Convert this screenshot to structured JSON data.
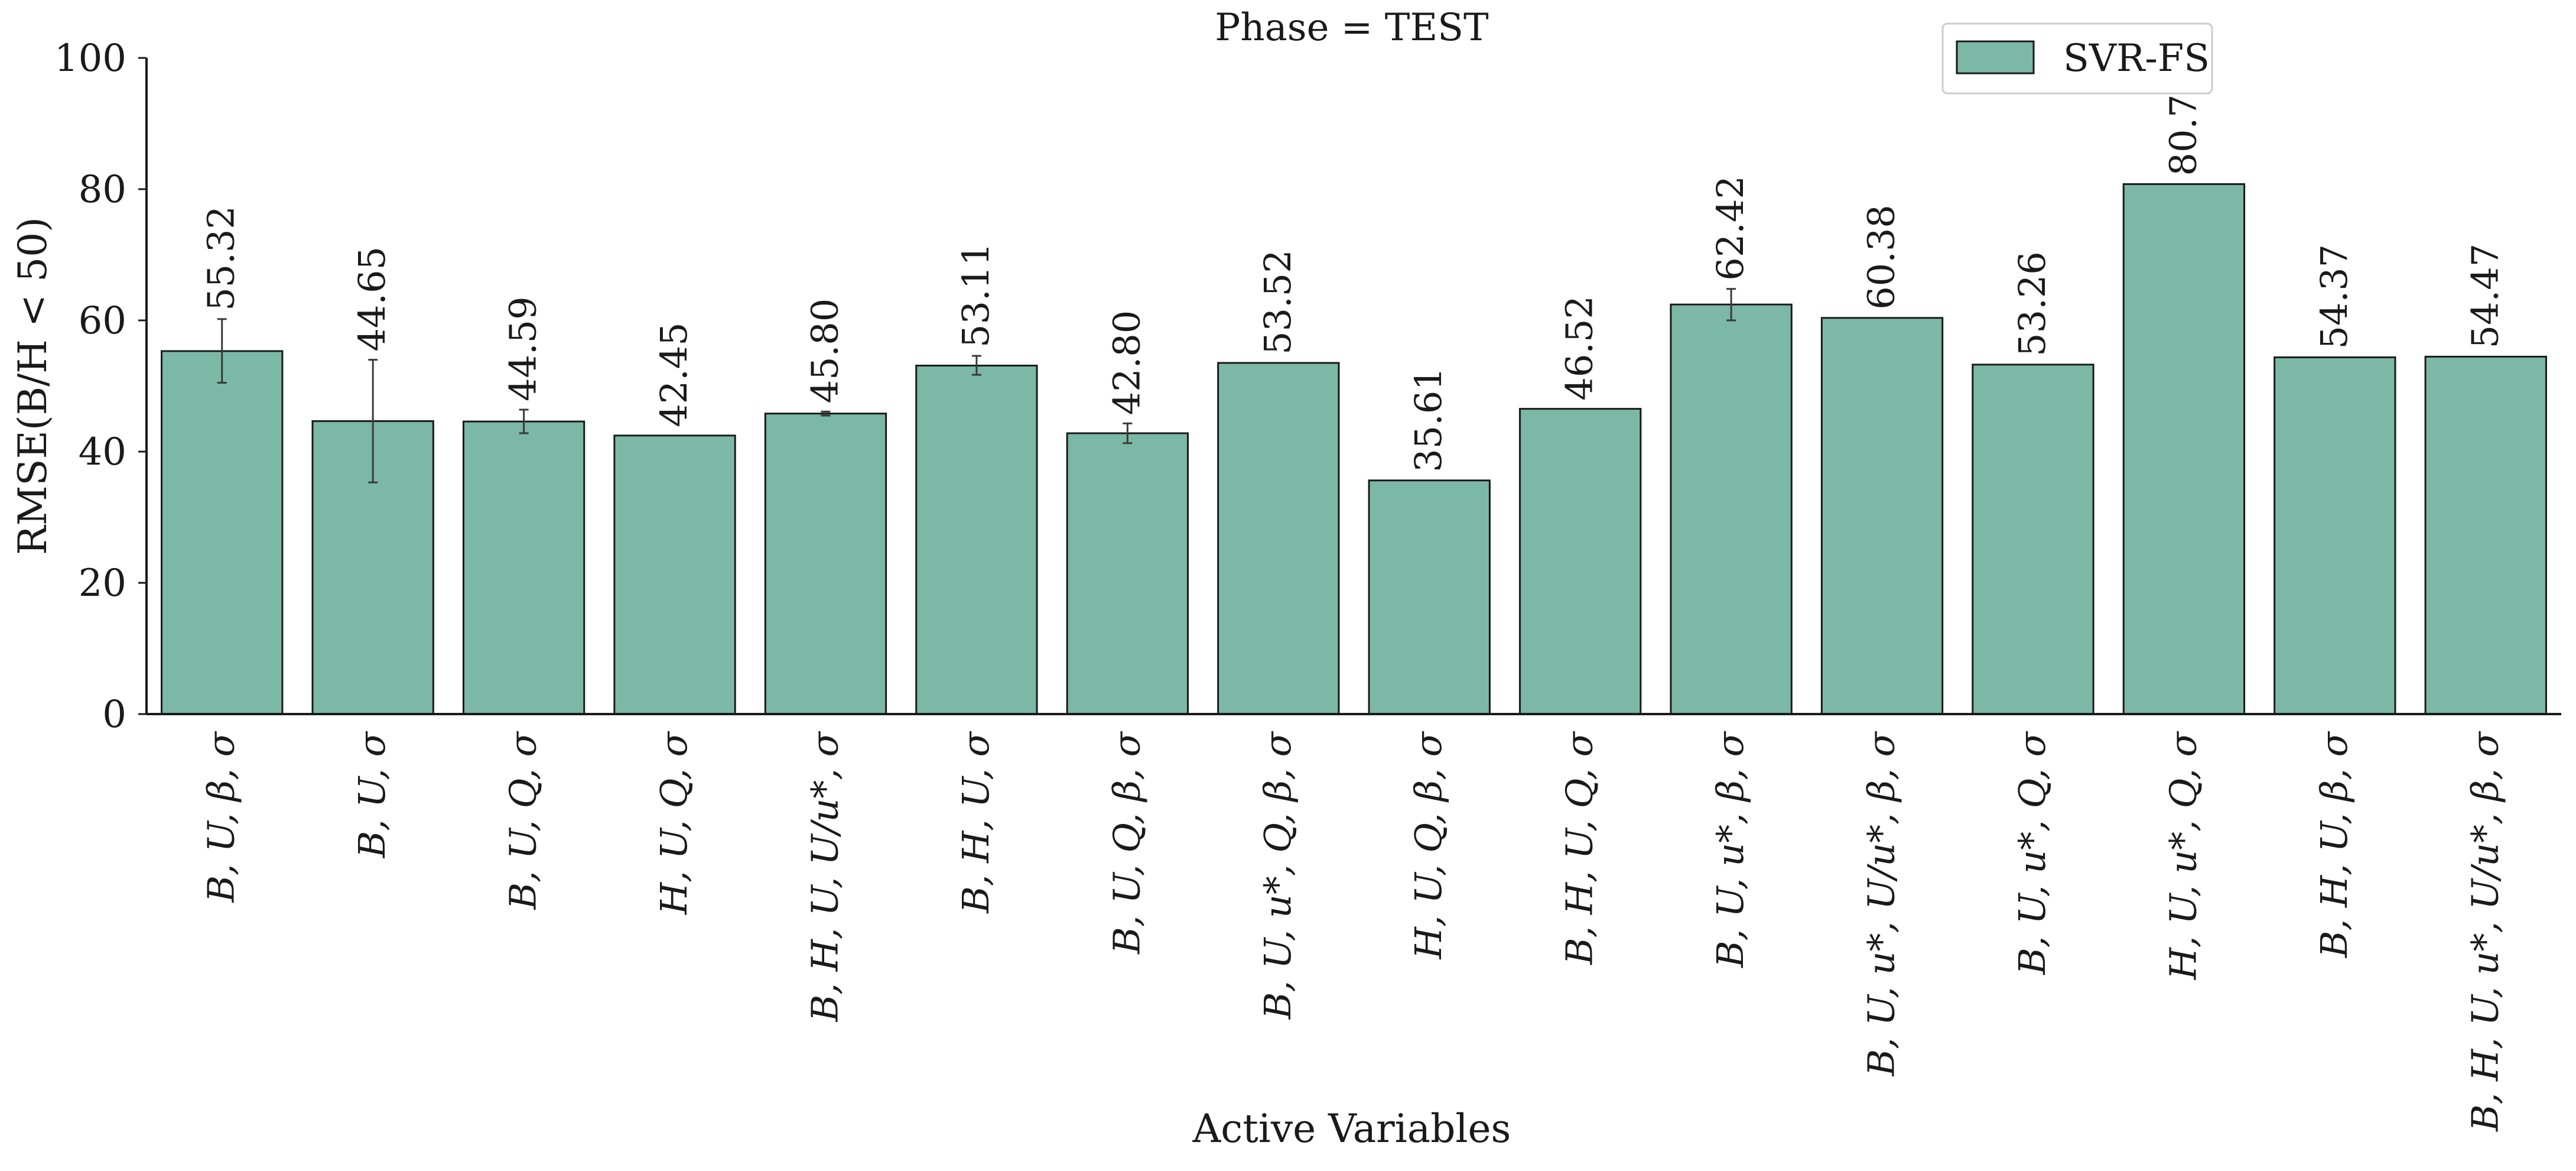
{
  "chart_data": {
    "type": "bar",
    "title": "Phase = TEST",
    "xlabel": "Active Variables",
    "ylabel": "RMSE(B/H < 50)",
    "ylim": [
      0,
      100
    ],
    "yticks": [
      0,
      20,
      40,
      60,
      80,
      100
    ],
    "legend": {
      "placement": "top-right",
      "entries": [
        "SVR-FS"
      ]
    },
    "grid": false,
    "categories": [
      "B, U, β, σ",
      "B, U, σ",
      "B, U, Q, σ",
      "H, U, Q, σ",
      "B, H, U, U/u*, σ",
      "B, H, U, σ",
      "B, U, Q, β, σ",
      "B, U, u*, Q, β, σ",
      "H, U, Q, β, σ",
      "B, H, U, Q, σ",
      "B, U, u*, β, σ",
      "B, U, u*, U/u*, β, σ",
      "B, U, u*, Q, σ",
      "H, U, u*, Q, σ",
      "B, H, U, β, σ",
      "B, H, U, u*, U/u*, β, σ"
    ],
    "series": [
      {
        "name": "SVR-FS",
        "color": "#7bb8a5",
        "values": [
          55.32,
          44.65,
          44.59,
          42.45,
          45.8,
          53.11,
          42.8,
          53.52,
          35.61,
          46.52,
          62.42,
          60.38,
          53.26,
          80.77,
          54.37,
          54.47
        ],
        "labels": [
          "55.32",
          "44.65",
          "44.59",
          "42.45",
          "45.80",
          "53.11",
          "42.80",
          "53.52",
          "35.61",
          "46.52",
          "62.42",
          "60.38",
          "53.26",
          "80.77",
          "54.37",
          "54.47"
        ],
        "error_low": [
          50.5,
          35.3,
          42.8,
          null,
          45.5,
          51.7,
          41.3,
          null,
          null,
          null,
          60.0,
          null,
          null,
          null,
          null,
          null
        ],
        "error_high": [
          60.2,
          54.0,
          46.4,
          null,
          46.1,
          54.6,
          44.3,
          null,
          null,
          null,
          64.8,
          null,
          null,
          null,
          null,
          null
        ]
      }
    ]
  }
}
